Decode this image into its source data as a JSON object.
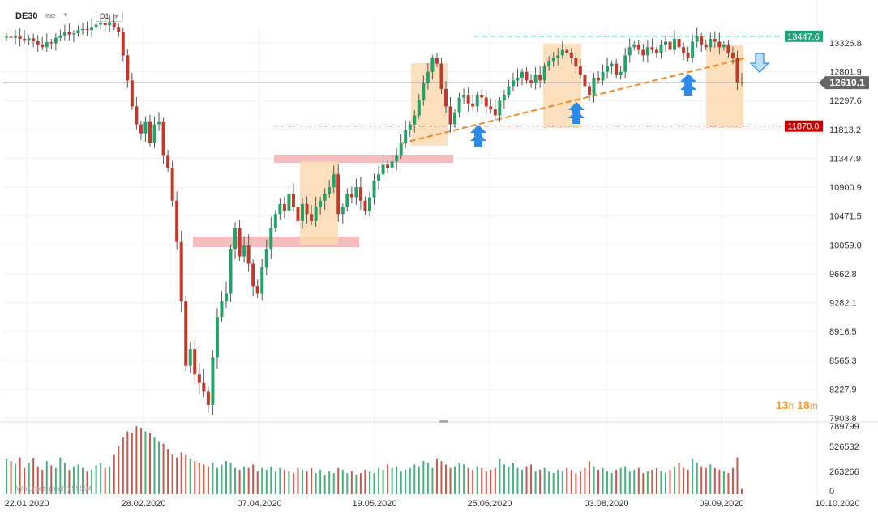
{
  "header": {
    "symbol": "DE30",
    "market": "IND",
    "timeframe": "D1"
  },
  "timer": {
    "hours": "13",
    "h_unit": "h",
    "minutes": "18",
    "m_unit": "m"
  },
  "volume_label": "Wolumen (real⁠y)   59594",
  "colors": {
    "up": "#26a269",
    "down": "#c0392b",
    "wick": "#555555",
    "zone": "#fbd9b0",
    "resist": "#f4b6b6",
    "trend": "#ee8a2a",
    "topline": "#2aa87a",
    "botline": "#c0392b",
    "arrow": "#2d8be8",
    "current_tag": "#666666"
  },
  "chart_data": {
    "type": "candlestick",
    "price_axis": {
      "ticks": [
        "13326.8",
        "12801.9",
        "12297.6",
        "11813.2",
        "11347.9",
        "10900.9",
        "10471.5",
        "10059.0",
        "9662.8",
        "9282.1",
        "8916.5",
        "8565.3",
        "8227.9",
        "7903.8"
      ],
      "ylim": [
        7800,
        13700
      ]
    },
    "volume_axis": {
      "ticks": [
        "789799",
        "526532",
        "263266",
        "0"
      ]
    },
    "date_ticks": [
      "22.01.2020",
      "28.02.2020",
      "07.04.2020",
      "19.05.2020",
      "25.06.2020",
      "03.08.2020",
      "09.09.2020",
      "10.10.2020"
    ],
    "tags": {
      "top": "13447.6",
      "current": "12610.1",
      "bottom": "11870.0"
    },
    "levels": {
      "top": 13447.6,
      "current": 12610.1,
      "bottom": 11870.0
    },
    "candles_close": [
      13440,
      13420,
      13455,
      13400,
      13380,
      13410,
      13360,
      13300,
      13250,
      13340,
      13320,
      13420,
      13460,
      13520,
      13480,
      13500,
      13560,
      13580,
      13560,
      13620,
      13660,
      13690,
      13650,
      13700,
      13620,
      13520,
      13100,
      12650,
      12200,
      11900,
      11750,
      11950,
      11600,
      11900,
      11950,
      11400,
      11200,
      10700,
      10100,
      9300,
      8500,
      8700,
      8400,
      8300,
      8200,
      8050,
      8600,
      9100,
      9300,
      9400,
      10000,
      10300,
      9900,
      10050,
      9800,
      9500,
      9400,
      9750,
      10000,
      10300,
      10500,
      10650,
      10550,
      10800,
      10600,
      10400,
      10650,
      10500,
      10400,
      10600,
      10700,
      10800,
      10900,
      11100,
      10500,
      10600,
      10800,
      10750,
      10900,
      10700,
      10550,
      10750,
      11000,
      11100,
      11250,
      11200,
      11300,
      11400,
      11600,
      11800,
      11900,
      12050,
      12300,
      12600,
      12800,
      13050,
      12950,
      12500,
      12200,
      11900,
      12100,
      12350,
      12400,
      12250,
      12200,
      12400,
      12350,
      12200,
      12150,
      12050,
      12300,
      12400,
      12550,
      12650,
      12700,
      12800,
      12650,
      12600,
      12750,
      12650,
      12900,
      13000,
      13050,
      13100,
      13200,
      13150,
      13050,
      12900,
      12750,
      12550,
      12400,
      12700,
      12650,
      12800,
      12900,
      12950,
      12750,
      12800,
      13100,
      13250,
      13300,
      13200,
      13100,
      13250,
      13200,
      13150,
      13300,
      13350,
      13200,
      13400,
      13250,
      13150,
      13050,
      13350,
      13450,
      13300,
      13250,
      13400,
      13350,
      13250,
      13300,
      13150,
      13050,
      12620,
      12610
    ],
    "candles_open": [
      13420,
      13440,
      13420,
      13455,
      13400,
      13380,
      13410,
      13360,
      13300,
      13250,
      13340,
      13320,
      13420,
      13460,
      13520,
      13480,
      13500,
      13560,
      13580,
      13560,
      13620,
      13660,
      13690,
      13650,
      13700,
      13620,
      13520,
      13100,
      12650,
      12200,
      11900,
      11750,
      11950,
      11600,
      11900,
      11950,
      11400,
      11200,
      10700,
      10100,
      9300,
      8500,
      8700,
      8400,
      8300,
      8200,
      8050,
      8600,
      9100,
      9300,
      9400,
      10000,
      10300,
      9900,
      10050,
      9800,
      9500,
      9400,
      9750,
      10000,
      10300,
      10500,
      10650,
      10550,
      10800,
      10600,
      10400,
      10650,
      10500,
      10400,
      10600,
      10700,
      10800,
      10900,
      11100,
      10500,
      10600,
      10800,
      10750,
      10900,
      10700,
      10550,
      10750,
      11000,
      11100,
      11250,
      11200,
      11300,
      11400,
      11600,
      11800,
      11900,
      12050,
      12300,
      12600,
      12800,
      13050,
      12950,
      12500,
      12200,
      11900,
      12100,
      12350,
      12400,
      12250,
      12200,
      12400,
      12350,
      12200,
      12150,
      12050,
      12300,
      12400,
      12550,
      12650,
      12700,
      12800,
      12650,
      12600,
      12750,
      12650,
      12900,
      13000,
      13050,
      13100,
      13200,
      13150,
      13050,
      12900,
      12750,
      12550,
      12400,
      12700,
      12650,
      12800,
      12900,
      12950,
      12750,
      12800,
      13100,
      13250,
      13300,
      13200,
      13100,
      13250,
      13200,
      13150,
      13300,
      13350,
      13200,
      13400,
      13250,
      13150,
      13050,
      13350,
      13450,
      13300,
      13250,
      13400,
      13350,
      13250,
      13300,
      13150,
      13050,
      12620
    ],
    "volumes": [
      400000,
      380000,
      350000,
      420000,
      300000,
      360000,
      410000,
      320000,
      280000,
      380000,
      330000,
      300000,
      420000,
      360000,
      280000,
      320000,
      340000,
      300000,
      260000,
      280000,
      330000,
      360000,
      300000,
      320000,
      450000,
      550000,
      650000,
      720000,
      700000,
      780000,
      760000,
      720000,
      700000,
      650000,
      600000,
      580000,
      520000,
      460000,
      420000,
      480000,
      450000,
      400000,
      380000,
      360000,
      340000,
      320000,
      360000,
      300000,
      340000,
      380000,
      360000,
      300000,
      280000,
      320000,
      300000,
      340000,
      260000,
      300000,
      280000,
      320000,
      260000,
      300000,
      280000,
      260000,
      240000,
      300000,
      280000,
      260000,
      300000,
      240000,
      280000,
      220000,
      260000,
      240000,
      300000,
      280000,
      240000,
      260000,
      220000,
      240000,
      280000,
      260000,
      240000,
      300000,
      280000,
      340000,
      300000,
      320000,
      260000,
      280000,
      300000,
      340000,
      320000,
      380000,
      360000,
      300000,
      400000,
      380000,
      340000,
      300000,
      320000,
      360000,
      340000,
      300000,
      280000,
      320000,
      300000,
      260000,
      280000,
      300000,
      400000,
      340000,
      320000,
      360000,
      300000,
      280000,
      320000,
      340000,
      260000,
      280000,
      300000,
      260000,
      240000,
      280000,
      260000,
      300000,
      280000,
      240000,
      260000,
      300000,
      380000,
      320000,
      280000,
      300000,
      260000,
      240000,
      280000,
      300000,
      320000,
      260000,
      280000,
      300000,
      240000,
      260000,
      280000,
      300000,
      260000,
      240000,
      280000,
      320000,
      360000,
      300000,
      280000,
      400000,
      360000,
      320000,
      300000,
      340000,
      300000,
      280000,
      260000,
      240000,
      300000,
      420000,
      60000
    ]
  }
}
